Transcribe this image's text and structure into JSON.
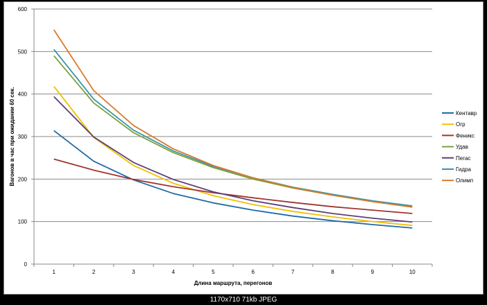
{
  "chart_data": {
    "type": "line",
    "title": "",
    "xlabel": "Длина маршрута,  перегонов",
    "ylabel": "Вагонов в час при ожидании 60 сек.",
    "x": [
      1,
      2,
      3,
      4,
      5,
      6,
      7,
      8,
      9,
      10
    ],
    "ylim": [
      0,
      600
    ],
    "yticks": [
      0,
      100,
      200,
      300,
      400,
      500,
      600
    ],
    "grid": "horizontal",
    "legend_position": "right",
    "series": [
      {
        "name": "Кентавр",
        "color": "#1f6aa5",
        "values": [
          314,
          242,
          198,
          166,
          144,
          127,
          113,
          102,
          93,
          85
        ]
      },
      {
        "name": "Огр",
        "color": "#f0c000",
        "values": [
          418,
          298,
          232,
          190,
          161,
          140,
          124,
          111,
          100,
          91
        ]
      },
      {
        "name": "Феникс",
        "color": "#a0332f",
        "values": [
          247,
          221,
          199,
          182,
          168,
          156,
          145,
          135,
          127,
          119
        ]
      },
      {
        "name": "Удав",
        "color": "#7e9f3a",
        "values": [
          490,
          379,
          309,
          262,
          227,
          200,
          179,
          162,
          147,
          135
        ]
      },
      {
        "name": "Пегас",
        "color": "#5b3f7a",
        "values": [
          394,
          299,
          239,
          199,
          170,
          149,
          133,
          119,
          108,
          99
        ]
      },
      {
        "name": "Гидра",
        "color": "#3596ab",
        "values": [
          505,
          388,
          315,
          266,
          230,
          203,
          181,
          164,
          149,
          137
        ]
      },
      {
        "name": "Олимп",
        "color": "#d97a2a",
        "values": [
          551,
          408,
          326,
          271,
          232,
          203,
          180,
          162,
          147,
          134
        ]
      }
    ]
  },
  "caption": "1170x710  71kb  JPEG"
}
